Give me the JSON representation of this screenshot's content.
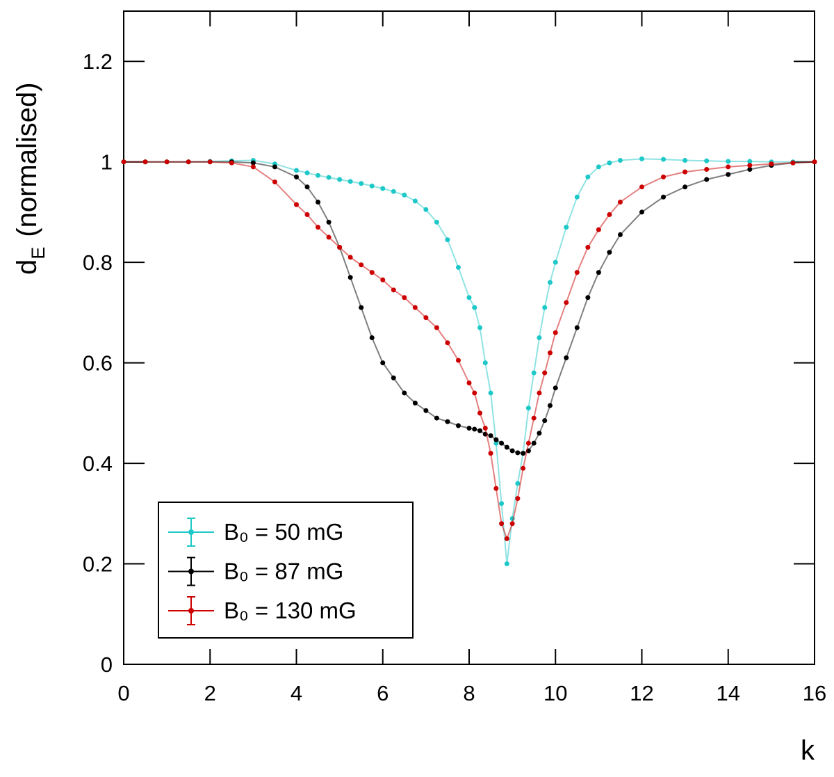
{
  "chart_data": {
    "type": "scatter",
    "ylabel": {
      "symbol": "d",
      "subscript": "E",
      "text": "(normalised)"
    },
    "xlabel": "k",
    "x": [
      0,
      0.5,
      1,
      1.5,
      2,
      2.5,
      3,
      3.5,
      4,
      4.25,
      4.5,
      4.75,
      5,
      5.25,
      5.5,
      5.75,
      6,
      6.25,
      6.5,
      6.75,
      7,
      7.25,
      7.5,
      7.75,
      8,
      8.125,
      8.25,
      8.375,
      8.5,
      8.625,
      8.75,
      8.875,
      9,
      9.125,
      9.25,
      9.375,
      9.5,
      9.625,
      9.75,
      9.875,
      10,
      10.25,
      10.5,
      10.75,
      11,
      11.25,
      11.5,
      12,
      12.5,
      13,
      13.5,
      14,
      14.5,
      15,
      15.5,
      16
    ],
    "series": [
      {
        "name": "B₀ = 50 mG",
        "color": "#1fc8c8",
        "values": [
          1,
          1,
          1,
          1,
          1.001,
          1.002,
          1.003,
          0.996,
          0.983,
          0.978,
          0.973,
          0.969,
          0.965,
          0.961,
          0.957,
          0.952,
          0.947,
          0.941,
          0.934,
          0.922,
          0.905,
          0.88,
          0.845,
          0.79,
          0.73,
          0.71,
          0.67,
          0.6,
          0.54,
          0.44,
          0.32,
          0.2,
          0.29,
          0.36,
          0.42,
          0.51,
          0.58,
          0.65,
          0.71,
          0.76,
          0.8,
          0.87,
          0.93,
          0.97,
          0.99,
          0.998,
          1.003,
          1.006,
          1.005,
          1.003,
          1.002,
          1.001,
          1.001,
          1,
          1,
          1
        ]
      },
      {
        "name": "B₀ = 87 mG",
        "color": "#000000",
        "values": [
          1,
          1,
          1,
          1,
          1,
          1,
          0.998,
          0.99,
          0.97,
          0.95,
          0.92,
          0.88,
          0.83,
          0.77,
          0.71,
          0.65,
          0.6,
          0.57,
          0.54,
          0.52,
          0.505,
          0.49,
          0.483,
          0.475,
          0.47,
          0.468,
          0.465,
          0.458,
          0.455,
          0.447,
          0.44,
          0.432,
          0.425,
          0.421,
          0.42,
          0.425,
          0.44,
          0.46,
          0.485,
          0.515,
          0.55,
          0.61,
          0.67,
          0.73,
          0.78,
          0.82,
          0.855,
          0.9,
          0.93,
          0.95,
          0.965,
          0.975,
          0.985,
          0.993,
          0.998,
          1
        ]
      },
      {
        "name": "B₀ = 130 mG",
        "color": "#cc0000",
        "values": [
          1,
          1,
          1,
          1,
          1,
          0.998,
          0.99,
          0.96,
          0.915,
          0.895,
          0.87,
          0.85,
          0.83,
          0.81,
          0.795,
          0.78,
          0.765,
          0.745,
          0.73,
          0.71,
          0.69,
          0.67,
          0.64,
          0.605,
          0.56,
          0.54,
          0.5,
          0.47,
          0.42,
          0.35,
          0.28,
          0.25,
          0.28,
          0.33,
          0.39,
          0.44,
          0.49,
          0.54,
          0.58,
          0.62,
          0.66,
          0.72,
          0.78,
          0.83,
          0.865,
          0.895,
          0.92,
          0.95,
          0.97,
          0.98,
          0.985,
          0.99,
          0.993,
          0.996,
          0.998,
          1
        ]
      }
    ],
    "xlim": [
      0,
      16
    ],
    "xticks": [
      0,
      2,
      4,
      6,
      8,
      10,
      12,
      14,
      16
    ],
    "ylim": [
      0,
      1.3
    ],
    "yticks": [
      0,
      0.2,
      0.4,
      0.6,
      0.8,
      1,
      1.2
    ],
    "legend": "lower left"
  }
}
